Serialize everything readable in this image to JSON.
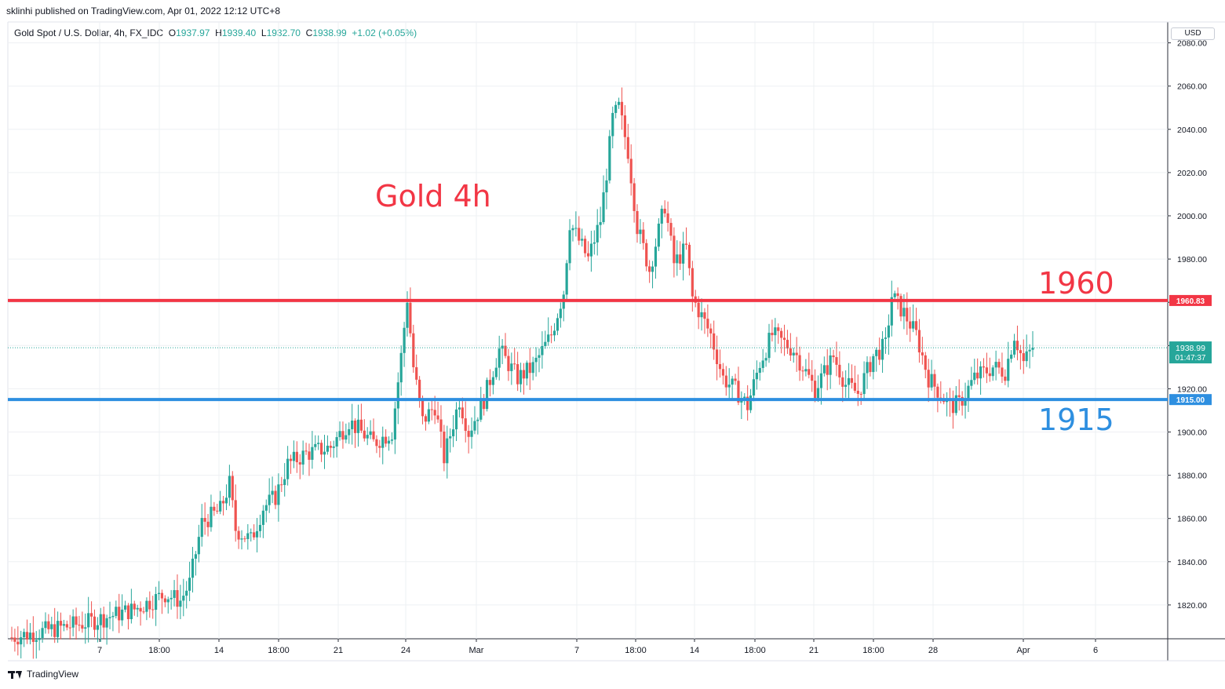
{
  "header": {
    "published": "sklinhi published on TradingView.com, Apr 01, 2022 12:12 UTC+8"
  },
  "legend": {
    "symbol": "Gold Spot / U.S. Dollar, 4h, FX_IDC",
    "o_label": "O",
    "o": "1937.97",
    "h_label": "H",
    "h": "1939.40",
    "l_label": "L",
    "l": "1932.70",
    "c_label": "C",
    "c": "1938.99",
    "change": "+1.02 (+0.05%)"
  },
  "currency_button": "USD",
  "footer": {
    "brand": "TradingView"
  },
  "colors": {
    "up": "#26a69a",
    "down": "#ef5350",
    "resistance": "#f23645",
    "support": "#2e8fe0",
    "grid": "#eef0f3",
    "axis": "#131722"
  },
  "icons": [
    "tradingview-logo-icon"
  ],
  "chart_data": {
    "type": "candlestick",
    "annotations": [
      {
        "text": "Gold 4h",
        "color": "#f23645"
      },
      {
        "text": "1960",
        "color": "#f23645"
      },
      {
        "text": "1915",
        "color": "#2e8fe0"
      }
    ],
    "levels": [
      {
        "price": 1960.83,
        "label": "1960.83",
        "color": "#f23645"
      },
      {
        "price": 1915.0,
        "label": "1915.00",
        "color": "#2e8fe0"
      }
    ],
    "last_price": {
      "price": 1938.99,
      "label": "1938.99",
      "countdown": "01:47:37"
    },
    "ylim": [
      1803,
      2085
    ],
    "y_ticks": [
      "2080.00",
      "2060.00",
      "2040.00",
      "2020.00",
      "2000.00",
      "1980.00",
      "1960.00",
      "1940.00",
      "1920.00",
      "1900.00",
      "1880.00",
      "1860.00",
      "1840.00",
      "1820.00"
    ],
    "x_ticks": [
      "7",
      "18:00",
      "14",
      "18:00",
      "21",
      "24",
      "Mar",
      "7",
      "18:00",
      "14",
      "18:00",
      "21",
      "18:00",
      "28",
      "Apr",
      "6"
    ],
    "keypoints": [
      [
        0,
        1805
      ],
      [
        25,
        1812
      ],
      [
        40,
        1818
      ],
      [
        50,
        1825
      ],
      [
        55,
        1822
      ],
      [
        58,
        1830
      ],
      [
        62,
        1858
      ],
      [
        68,
        1864
      ],
      [
        71,
        1876
      ],
      [
        73,
        1855
      ],
      [
        78,
        1850
      ],
      [
        82,
        1865
      ],
      [
        86,
        1870
      ],
      [
        90,
        1885
      ],
      [
        96,
        1890
      ],
      [
        104,
        1893
      ],
      [
        110,
        1905
      ],
      [
        118,
        1895
      ],
      [
        124,
        1900
      ],
      [
        127,
        1935
      ],
      [
        129,
        1962
      ],
      [
        131,
        1930
      ],
      [
        134,
        1905
      ],
      [
        138,
        1912
      ],
      [
        141,
        1888
      ],
      [
        146,
        1915
      ],
      [
        149,
        1900
      ],
      [
        154,
        1915
      ],
      [
        159,
        1938
      ],
      [
        165,
        1925
      ],
      [
        170,
        1930
      ],
      [
        176,
        1945
      ],
      [
        180,
        1965
      ],
      [
        182,
        1997
      ],
      [
        188,
        1980
      ],
      [
        192,
        1998
      ],
      [
        194,
        2020
      ],
      [
        196,
        2045
      ],
      [
        198,
        2050
      ],
      [
        201,
        2030
      ],
      [
        204,
        1995
      ],
      [
        208,
        1975
      ],
      [
        213,
        2005
      ],
      [
        216,
        1978
      ],
      [
        220,
        1985
      ],
      [
        222,
        1962
      ],
      [
        228,
        1945
      ],
      [
        232,
        1925
      ],
      [
        237,
        1918
      ],
      [
        240,
        1912
      ],
      [
        244,
        1932
      ],
      [
        248,
        1945
      ],
      [
        255,
        1938
      ],
      [
        262,
        1920
      ],
      [
        268,
        1935
      ],
      [
        272,
        1922
      ],
      [
        276,
        1918
      ],
      [
        281,
        1935
      ],
      [
        285,
        1940
      ],
      [
        287,
        1963
      ],
      [
        291,
        1955
      ],
      [
        295,
        1945
      ],
      [
        299,
        1925
      ],
      [
        306,
        1912
      ],
      [
        309,
        1913
      ],
      [
        314,
        1925
      ],
      [
        320,
        1930
      ],
      [
        324,
        1928
      ],
      [
        327,
        1945
      ],
      [
        330,
        1932
      ],
      [
        333,
        1939
      ]
    ],
    "seed": 7
  }
}
